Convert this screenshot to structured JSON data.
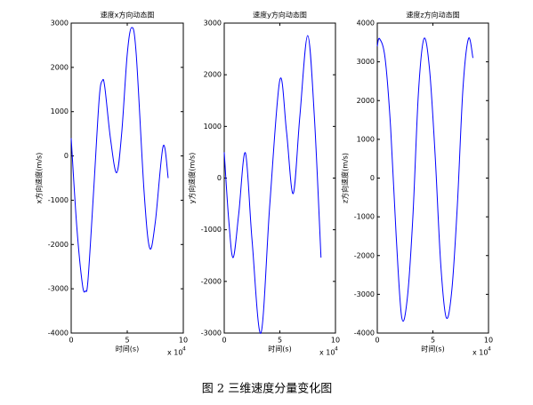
{
  "chart_data": [
    {
      "type": "line",
      "title": "速度x方向动态图",
      "xlabel": "时间(s)",
      "ylabel": "x方向速度(m/s)",
      "x_scale_base": "x 10",
      "x_scale_exponent": "4",
      "x": [
        0,
        0.5,
        1,
        1.27,
        1.5,
        2,
        2.5,
        2.78,
        3,
        3.5,
        4.05,
        4.5,
        5,
        5.4,
        5.8,
        6.5,
        7,
        7.5,
        8.2,
        8.65
      ],
      "series": [
        {
          "color": "#0000ff",
          "values": [
            400,
            -1600,
            -2900,
            -3050,
            -2800,
            -800,
            1300,
            1700,
            1550,
            400,
            -380,
            500,
            2300,
            2900,
            2300,
            -800,
            -2080,
            -1500,
            220,
            -500
          ]
        }
      ],
      "xlim": [
        0,
        10
      ],
      "xticks": [
        0,
        5,
        10
      ],
      "ylim": [
        -4000,
        3000
      ],
      "yticks": [
        -4000,
        -3000,
        -2000,
        -1000,
        0,
        1000,
        2000,
        3000
      ]
    },
    {
      "type": "line",
      "title": "速度y方向动态图",
      "xlabel": "时间(s)",
      "ylabel": "y方向速度(m/s)",
      "x_scale_base": "x 10",
      "x_scale_exponent": "4",
      "x": [
        0,
        0.4,
        0.8,
        1.3,
        1.9,
        2.5,
        3.3,
        4.1,
        5.0,
        5.6,
        6.2,
        6.8,
        7.5,
        8.1,
        8.7
      ],
      "series": [
        {
          "color": "#0000ff",
          "values": [
            500,
            -800,
            -1540,
            -700,
            490,
            -1200,
            -3000,
            -500,
            1900,
            900,
            -300,
            1200,
            2760,
            1200,
            -1540
          ]
        }
      ],
      "xlim": [
        0,
        10
      ],
      "xticks": [
        0,
        5,
        10
      ],
      "ylim": [
        -3000,
        3000
      ],
      "yticks": [
        -3000,
        -2000,
        -1000,
        0,
        1000,
        2000,
        3000
      ]
    },
    {
      "type": "line",
      "title": "速度z方向动态图",
      "xlabel": "时间(s)",
      "ylabel": "z方向速度(m/s)",
      "x_scale_base": "x 10",
      "x_scale_exponent": "4",
      "x": [
        0,
        0.2,
        0.7,
        1.2,
        1.7,
        2.2,
        2.7,
        3.2,
        3.7,
        4.2,
        4.7,
        5.2,
        5.7,
        6.2,
        6.7,
        7.2,
        7.7,
        8.2,
        8.6
      ],
      "series": [
        {
          "color": "#0000ff",
          "values": [
            3400,
            3600,
            3100,
            1300,
            -1500,
            -3600,
            -3100,
            -1000,
            2200,
            3600,
            2800,
            600,
            -2200,
            -3600,
            -2900,
            -700,
            2300,
            3600,
            3100
          ]
        }
      ],
      "xlim": [
        0,
        10
      ],
      "xticks": [
        0,
        5,
        10
      ],
      "ylim": [
        -4000,
        4000
      ],
      "yticks": [
        -4000,
        -3000,
        -2000,
        -1000,
        0,
        1000,
        2000,
        3000,
        4000
      ]
    }
  ],
  "caption": "图 2  三维速度分量变化图"
}
